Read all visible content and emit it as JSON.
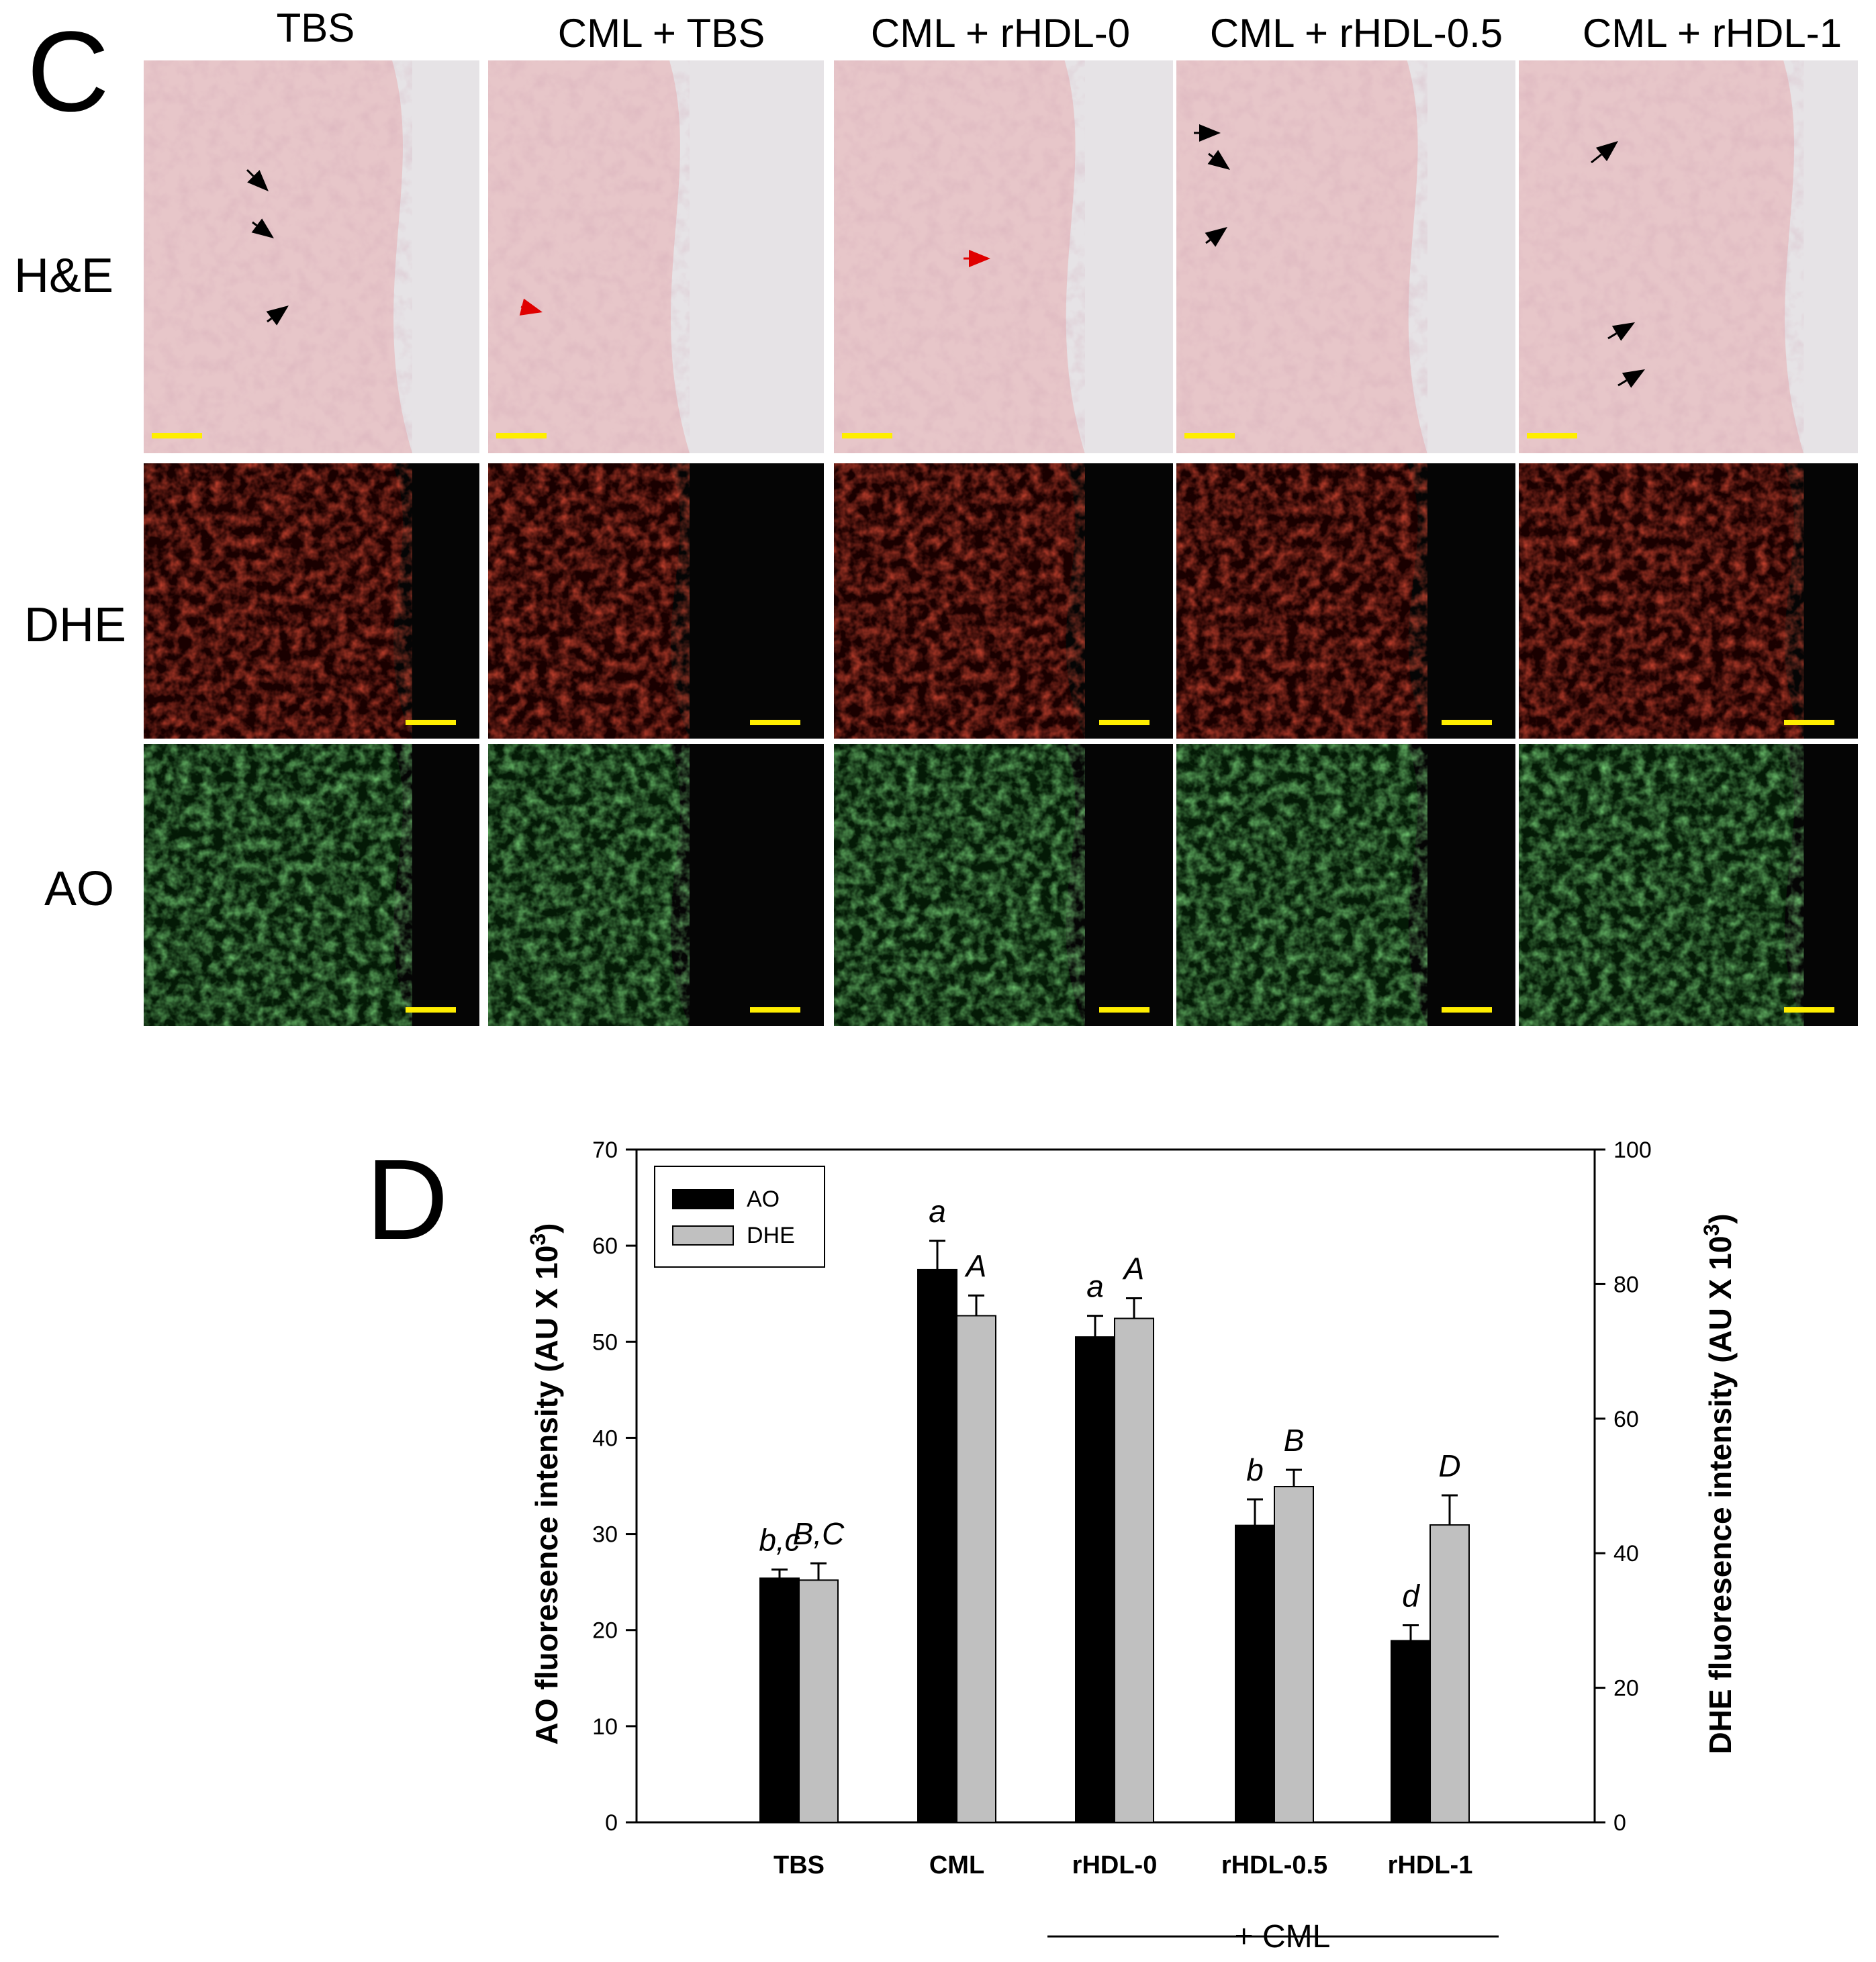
{
  "panel_c": {
    "letter": "C",
    "columns": [
      "TBS",
      "CML + TBS",
      "CML + rHDL-0",
      "CML + rHDL-0.5",
      "CML + rHDL-1"
    ],
    "rows": [
      "H&E",
      "DHE",
      "AO"
    ],
    "colors": {
      "he_base": "#e7c6c9",
      "he_tissue_dark": "#c78e9a",
      "dhe_base": "#1a0000",
      "dhe_tissue": "#b40000",
      "ao_base": "#041a06",
      "ao_tissue": "#2f9a34",
      "scale_bar": "#ffee00",
      "arrow_black": "#000000",
      "arrow_red": "#e00000"
    }
  },
  "panel_d": {
    "letter": "D",
    "legend": [
      {
        "label": "AO",
        "color": "#000000"
      },
      {
        "label": "DHE",
        "color": "#c0c0c0"
      }
    ],
    "group_footer": "+ CML"
  },
  "chart_data": {
    "type": "bar",
    "categories": [
      "TBS",
      "CML",
      "rHDL-0",
      "rHDL-0.5",
      "rHDL-1"
    ],
    "series": [
      {
        "name": "AO",
        "axis": "left",
        "color": "#000000",
        "values": [
          25.4,
          57.5,
          50.5,
          30.9,
          18.9
        ],
        "errors": [
          0.9,
          3.0,
          2.2,
          2.7,
          1.6
        ],
        "letters": [
          "b,c",
          "a",
          "a",
          "b",
          "d"
        ]
      },
      {
        "name": "DHE",
        "axis": "right",
        "color": "#c0c0c0",
        "values": [
          36.0,
          75.3,
          74.9,
          49.9,
          44.2
        ],
        "errors": [
          2.5,
          3.0,
          3.0,
          2.5,
          4.4
        ],
        "letters": [
          "B,C",
          "A",
          "A",
          "B",
          "D"
        ]
      }
    ],
    "ylabel_left": "AO fluoresence intensity (AU X 10",
    "ylabel_right": "DHE fluoresence intensity (AU X 10",
    "ylabel_superscript": "3",
    "ylim_left": [
      0,
      70
    ],
    "yticks_left": [
      0,
      10,
      20,
      30,
      40,
      50,
      60,
      70
    ],
    "ylim_right": [
      0,
      100
    ],
    "yticks_right": [
      0,
      20,
      40,
      60,
      80,
      100
    ],
    "grid": false,
    "legend_position": "top-left"
  }
}
